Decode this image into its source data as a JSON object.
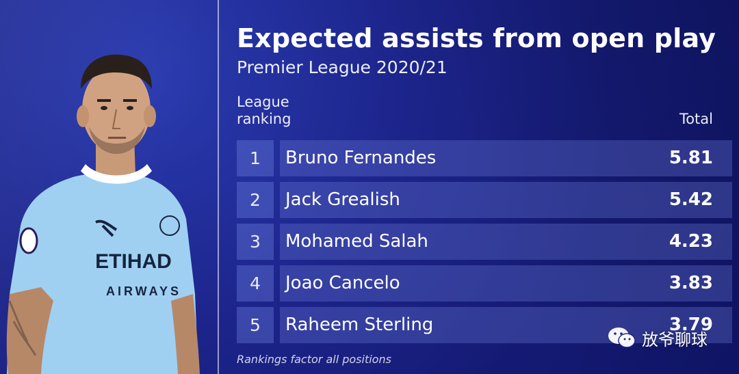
{
  "graphic": {
    "title": "Expected assists from open play",
    "subtitle": "Premier League 2020/21",
    "columns": {
      "ranking_line1": "League",
      "ranking_line2": "ranking",
      "total": "Total"
    },
    "rows": [
      {
        "rank": "1",
        "player": "Bruno Fernandes",
        "total": "5.81"
      },
      {
        "rank": "2",
        "player": "Jack Grealish",
        "total": "5.42"
      },
      {
        "rank": "3",
        "player": "Mohamed Salah",
        "total": "4.23"
      },
      {
        "rank": "4",
        "player": "Joao Cancelo",
        "total": "3.83"
      },
      {
        "rank": "5",
        "player": "Raheem Sterling",
        "total": "3.79"
      }
    ],
    "footnote": "Rankings factor all positions"
  },
  "player_photo": {
    "shirt_sponsor_line1": "ETIHAD",
    "shirt_sponsor_line2": "AIRWAYS"
  },
  "watermark": {
    "text": "放爷聊球",
    "icon": "wechat-icon"
  },
  "colors": {
    "background": "#1c248a",
    "shirt": "#9fd0f2",
    "text": "#ffffff"
  }
}
